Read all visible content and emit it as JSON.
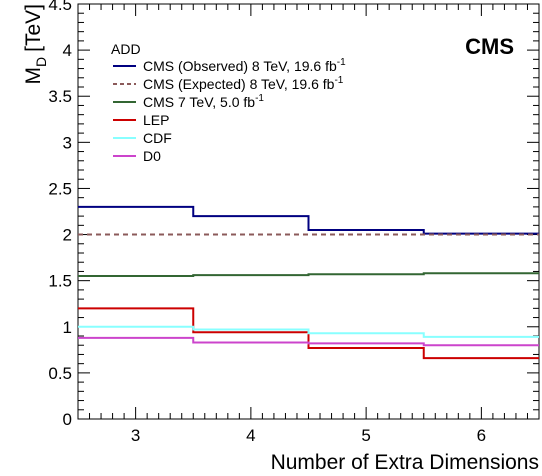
{
  "chart_data": {
    "type": "line",
    "step": true,
    "title": "",
    "xlabel": "Number of Extra Dimensions",
    "ylabel_main": "M",
    "ylabel_sub": "D",
    "ylabel_unit": "[TeV]",
    "xlim": [
      2.5,
      6.5
    ],
    "ylim": [
      0,
      4.5
    ],
    "xticks": [
      3,
      4,
      5,
      6
    ],
    "yticks": [
      0,
      0.5,
      1,
      1.5,
      2,
      2.5,
      3,
      3.5,
      4,
      4.5
    ],
    "ytick_labels": [
      "0",
      "0.5",
      "1",
      "1.5",
      "2",
      "2.5",
      "3",
      "3.5",
      "4",
      "4.5"
    ],
    "grid": false,
    "legend_placement": "top-left",
    "legend_title": "ADD",
    "experiment_label": "CMS",
    "series": [
      {
        "name": "CMS (Observed) 8 TeV, 19.6 fb",
        "name_sup": "-1",
        "color": "#000080",
        "dash": "solid",
        "values": [
          2.3,
          2.2,
          2.05,
          2.01
        ]
      },
      {
        "name": "CMS (Expected) 8 TeV, 19.6 fb",
        "name_sup": "-1",
        "color": "#8b5a5a",
        "dash": "dashed",
        "values": [
          2.0,
          2.0,
          2.0,
          2.0
        ]
      },
      {
        "name": "CMS 7 TeV, 5.0 fb",
        "name_sup": "-1",
        "color": "#336633",
        "dash": "solid",
        "values": [
          1.55,
          1.56,
          1.57,
          1.58
        ]
      },
      {
        "name": "LEP",
        "name_sup": "",
        "color": "#cc0000",
        "dash": "solid",
        "values": [
          1.2,
          0.94,
          0.77,
          0.66
        ]
      },
      {
        "name": "CDF",
        "name_sup": "",
        "color": "#88ffff",
        "dash": "solid",
        "values": [
          1.0,
          0.97,
          0.93,
          0.89
        ]
      },
      {
        "name": "D0",
        "name_sup": "",
        "color": "#cc44cc",
        "dash": "solid",
        "values": [
          0.88,
          0.83,
          0.82,
          0.8
        ]
      }
    ]
  }
}
